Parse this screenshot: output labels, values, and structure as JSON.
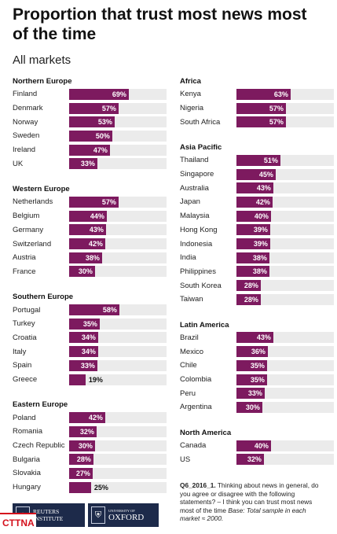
{
  "header": {
    "title": "Proportion that trust most news most of the time",
    "subtitle": "All markets"
  },
  "chart_data": {
    "type": "bar",
    "title": "Proportion that trust most news most of the time",
    "subtitle": "All markets",
    "unit": "%",
    "xlim": [
      0,
      100
    ],
    "bar_color": "#7d1a5f",
    "track_color": "#ebebeb",
    "regions": [
      {
        "name": "Northern Europe",
        "column": "left",
        "rows": [
          {
            "country": "Finland",
            "value": 69,
            "label": "69%"
          },
          {
            "country": "Denmark",
            "value": 57,
            "label": "57%"
          },
          {
            "country": "Norway",
            "value": 53,
            "label": "53%"
          },
          {
            "country": "Sweden",
            "value": 50,
            "label": "50%"
          },
          {
            "country": "Ireland",
            "value": 47,
            "label": "47%"
          },
          {
            "country": "UK",
            "value": 33,
            "label": "33%"
          }
        ]
      },
      {
        "name": "Western Europe",
        "column": "left",
        "rows": [
          {
            "country": "Netherlands",
            "value": 57,
            "label": "57%"
          },
          {
            "country": "Belgium",
            "value": 44,
            "label": "44%"
          },
          {
            "country": "Germany",
            "value": 43,
            "label": "43%"
          },
          {
            "country": "Switzerland",
            "value": 42,
            "label": "42%"
          },
          {
            "country": "Austria",
            "value": 38,
            "label": "38%"
          },
          {
            "country": "France",
            "value": 30,
            "label": "30%"
          }
        ]
      },
      {
        "name": "Southern Europe",
        "column": "left",
        "rows": [
          {
            "country": "Portugal",
            "value": 58,
            "label": "58%"
          },
          {
            "country": "Turkey",
            "value": 35,
            "label": "35%"
          },
          {
            "country": "Croatia",
            "value": 34,
            "label": "34%"
          },
          {
            "country": "Italy",
            "value": 34,
            "label": "34%"
          },
          {
            "country": "Spain",
            "value": 33,
            "label": "33%"
          },
          {
            "country": "Greece",
            "value": 19,
            "label": "19%"
          }
        ]
      },
      {
        "name": "Eastern Europe",
        "column": "left",
        "rows": [
          {
            "country": "Poland",
            "value": 42,
            "label": "42%"
          },
          {
            "country": "Romania",
            "value": 32,
            "label": "32%"
          },
          {
            "country": "Czech Republic",
            "value": 30,
            "label": "30%"
          },
          {
            "country": "Bulgaria",
            "value": 28,
            "label": "28%"
          },
          {
            "country": "Slovakia",
            "value": 27,
            "label": "27%"
          },
          {
            "country": "Hungary",
            "value": 25,
            "label": "25%"
          }
        ]
      },
      {
        "name": "Africa",
        "column": "right",
        "rows": [
          {
            "country": "Kenya",
            "value": 63,
            "label": "63%"
          },
          {
            "country": "Nigeria",
            "value": 57,
            "label": "57%"
          },
          {
            "country": "South Africa",
            "value": 57,
            "label": "57%"
          }
        ]
      },
      {
        "name": "Asia Pacific",
        "column": "right",
        "rows": [
          {
            "country": "Thailand",
            "value": 51,
            "label": "51%"
          },
          {
            "country": "Singapore",
            "value": 45,
            "label": "45%"
          },
          {
            "country": "Australia",
            "value": 43,
            "label": "43%"
          },
          {
            "country": "Japan",
            "value": 42,
            "label": "42%"
          },
          {
            "country": "Malaysia",
            "value": 40,
            "label": "40%"
          },
          {
            "country": "Hong Kong",
            "value": 39,
            "label": "39%"
          },
          {
            "country": "Indonesia",
            "value": 39,
            "label": "39%"
          },
          {
            "country": "India",
            "value": 38,
            "label": "38%"
          },
          {
            "country": "Philippines",
            "value": 38,
            "label": "38%"
          },
          {
            "country": "South Korea",
            "value": 28,
            "label": "28%"
          },
          {
            "country": "Taiwan",
            "value": 28,
            "label": "28%"
          }
        ]
      },
      {
        "name": "Latin America",
        "column": "right",
        "rows": [
          {
            "country": "Brazil",
            "value": 43,
            "label": "43%"
          },
          {
            "country": "Mexico",
            "value": 36,
            "label": "36%"
          },
          {
            "country": "Chile",
            "value": 35,
            "label": "35%"
          },
          {
            "country": "Colombia",
            "value": 35,
            "label": "35%"
          },
          {
            "country": "Peru",
            "value": 33,
            "label": "33%"
          },
          {
            "country": "Argentina",
            "value": 30,
            "label": "30%"
          }
        ]
      },
      {
        "name": "North America",
        "column": "right",
        "rows": [
          {
            "country": "Canada",
            "value": 40,
            "label": "40%"
          },
          {
            "country": "US",
            "value": 32,
            "label": "32%"
          }
        ]
      }
    ]
  },
  "footnote": {
    "code": "Q6_2016_1.",
    "question": "Thinking about news in general, do you agree or disagree with the following statements? – I think you can trust most news most of the time",
    "base": "Base: Total sample in each market ≈ 2000."
  },
  "logos": {
    "reuters_line1": "REUTERS",
    "reuters_line2": "INSTITUTE",
    "oxford_small": "UNIVERSITY OF",
    "oxford_big": "OXFORD",
    "watermark": "CTTNA"
  }
}
